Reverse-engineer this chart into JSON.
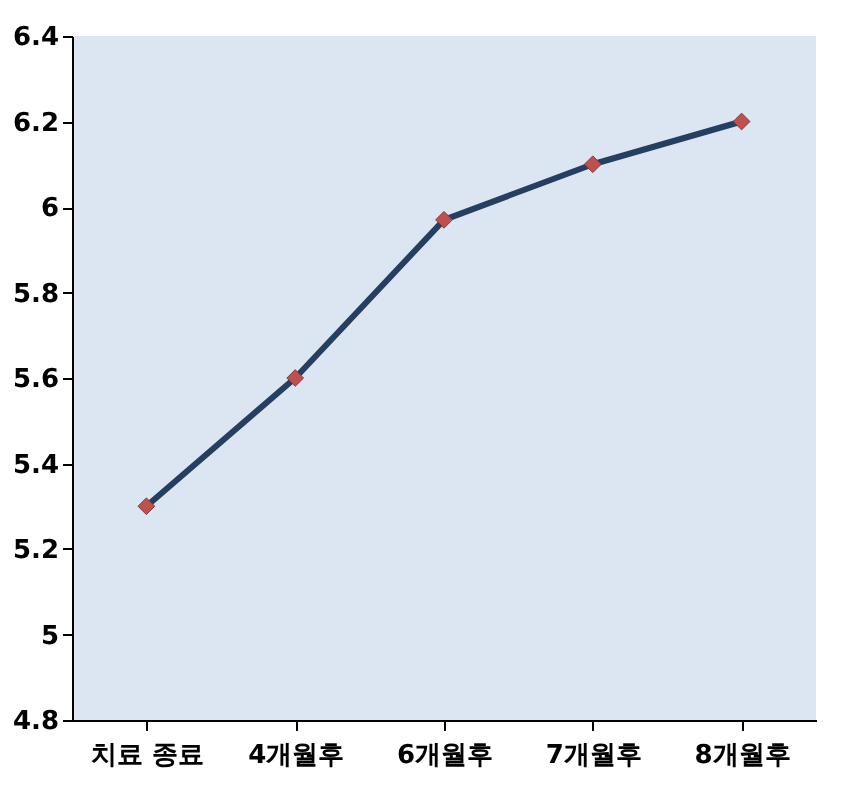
{
  "chart_data": {
    "type": "line",
    "categories": [
      "치료 종료",
      "4개월후",
      "6개월후",
      "7개월후",
      "8개월후"
    ],
    "series": [
      {
        "color": "#243f60",
        "colors": [
          "#c0504d",
          "#c0504d",
          "#c0504d",
          "#c0504d",
          "#c0504d"
        ],
        "values": [
          5.3,
          5.6,
          5.97,
          6.1,
          6.2
        ]
      }
    ],
    "marker": "diamond",
    "line_style": "solid",
    "ylim": [
      4.8,
      6.4
    ],
    "yticks": [
      4.8,
      5,
      5.2,
      5.4,
      5.6,
      5.8,
      6,
      6.2,
      6.4
    ],
    "grid": false
  }
}
